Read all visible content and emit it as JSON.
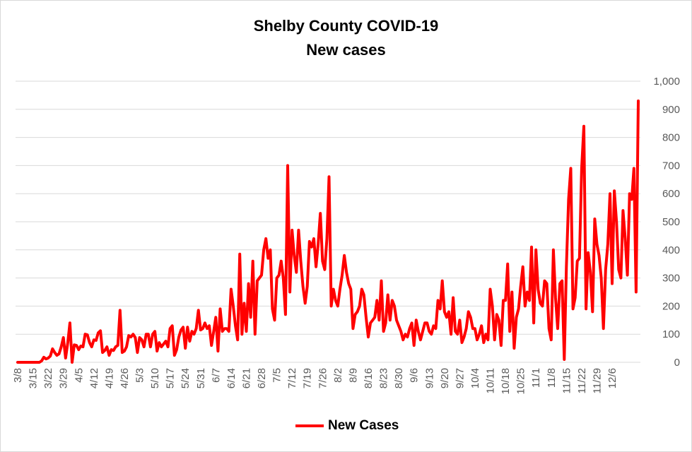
{
  "chart_data": {
    "type": "line",
    "title": "Shelby County COVID-19",
    "subtitle": "New cases",
    "xlabel": "",
    "ylabel": "",
    "ylim": [
      0,
      1000
    ],
    "yticks": [
      "0",
      "100",
      "200",
      "300",
      "400",
      "500",
      "600",
      "700",
      "800",
      "900",
      "1,000"
    ],
    "ytick_values": [
      0,
      100,
      200,
      300,
      400,
      500,
      600,
      700,
      800,
      900,
      1000
    ],
    "y_axis_side": "right",
    "grid": "horizontal",
    "xticks": [
      "3/8",
      "3/15",
      "3/22",
      "3/29",
      "4/5",
      "4/12",
      "4/19",
      "4/26",
      "5/3",
      "5/10",
      "5/17",
      "5/24",
      "5/31",
      "6/7",
      "6/14",
      "6/21",
      "6/28",
      "7/5",
      "7/12",
      "7/19",
      "7/26",
      "8/2",
      "8/9",
      "8/16",
      "8/23",
      "8/30",
      "9/6",
      "9/13",
      "9/20",
      "9/27",
      "10/4",
      "10/11",
      "10/18",
      "10/25",
      "11/1",
      "11/8",
      "11/15",
      "11/22",
      "11/29",
      "12/6"
    ],
    "legend_position": "bottom",
    "series": [
      {
        "name": "New Cases",
        "color": "#ff0000",
        "start_date": "3/8",
        "values": [
          0,
          0,
          0,
          0,
          0,
          0,
          0,
          0,
          0,
          0,
          0,
          5,
          18,
          12,
          15,
          22,
          48,
          35,
          25,
          30,
          55,
          88,
          15,
          70,
          140,
          0,
          62,
          60,
          45,
          58,
          55,
          100,
          98,
          70,
          55,
          80,
          78,
          105,
          112,
          35,
          42,
          55,
          25,
          45,
          42,
          55,
          60,
          185,
          35,
          40,
          55,
          95,
          90,
          100,
          88,
          35,
          88,
          80,
          55,
          100,
          100,
          55,
          100,
          110,
          40,
          70,
          55,
          65,
          75,
          55,
          120,
          130,
          25,
          45,
          90,
          115,
          125,
          50,
          125,
          75,
          110,
          100,
          120,
          185,
          115,
          120,
          140,
          120,
          130,
          60,
          110,
          160,
          40,
          190,
          110,
          120,
          120,
          110,
          260,
          200,
          130,
          80,
          385,
          100,
          210,
          110,
          280,
          160,
          360,
          100,
          290,
          300,
          310,
          400,
          440,
          370,
          400,
          190,
          150,
          300,
          310,
          360,
          300,
          170,
          700,
          250,
          470,
          380,
          320,
          470,
          360,
          270,
          210,
          270,
          430,
          410,
          440,
          340,
          420,
          530,
          360,
          330,
          440,
          660,
          200,
          260,
          220,
          200,
          260,
          310,
          380,
          320,
          280,
          260,
          120,
          170,
          180,
          200,
          260,
          240,
          160,
          90,
          140,
          150,
          160,
          220,
          150,
          290,
          110,
          140,
          240,
          150,
          220,
          200,
          150,
          130,
          110,
          80,
          100,
          90,
          120,
          140,
          60,
          150,
          110,
          80,
          110,
          140,
          140,
          110,
          100,
          130,
          120,
          220,
          190,
          290,
          180,
          160,
          180,
          100,
          230,
          110,
          100,
          150,
          70,
          90,
          120,
          180,
          160,
          120,
          120,
          80,
          100,
          130,
          70,
          100,
          80,
          260,
          200,
          80,
          170,
          150,
          60,
          220,
          220,
          350,
          110,
          250,
          50,
          160,
          190,
          270,
          340,
          200,
          250,
          220,
          410,
          140,
          400,
          260,
          210,
          200,
          290,
          280,
          120,
          80,
          400,
          230,
          120,
          280,
          290,
          10,
          340,
          580,
          690,
          190,
          230,
          360,
          370,
          690,
          840,
          190,
          390,
          320,
          180,
          510,
          420,
          380,
          300,
          120,
          330,
          420,
          600,
          280,
          610,
          500,
          330,
          300,
          540,
          440,
          310,
          600,
          580,
          690,
          250,
          930
        ]
      }
    ]
  }
}
